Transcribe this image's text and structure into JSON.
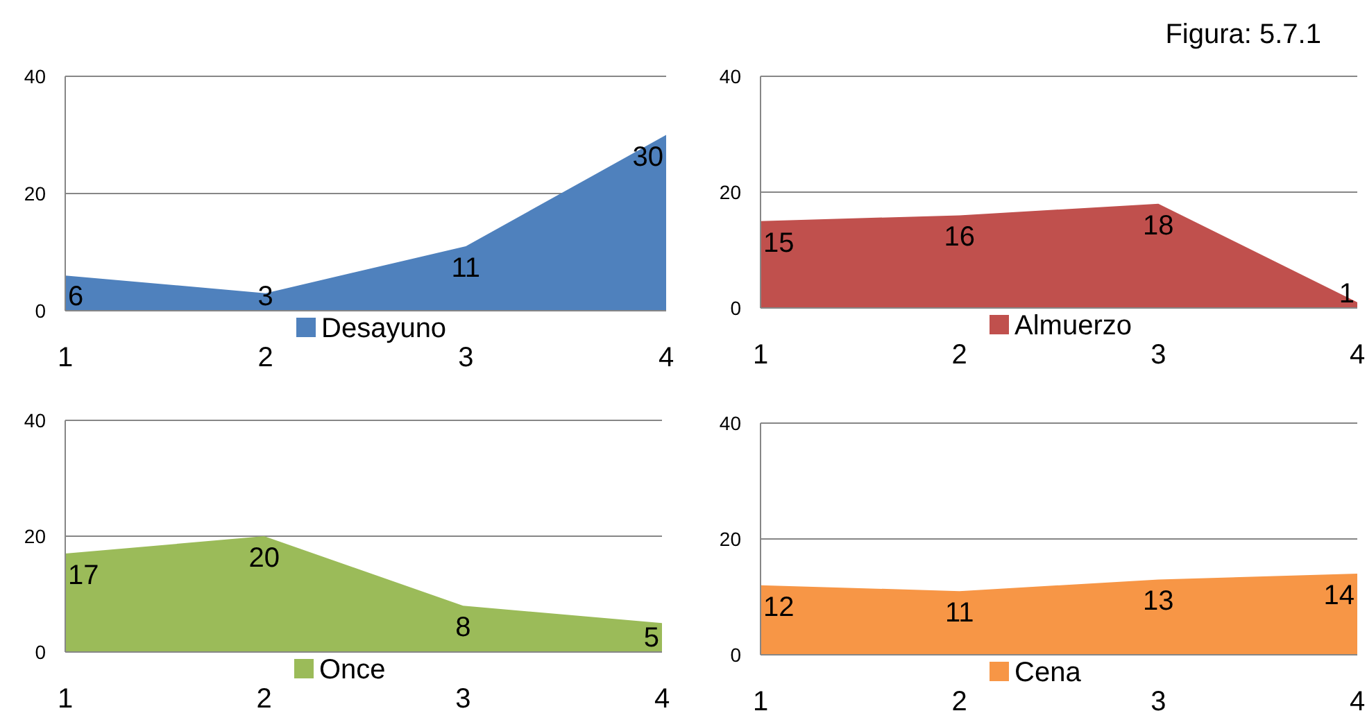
{
  "chart_data": [
    {
      "type": "area",
      "x": [
        1,
        2,
        3,
        4
      ],
      "xlim": [
        1,
        4
      ],
      "xticks": [
        1,
        2,
        3,
        4
      ],
      "ylim": [
        0,
        40
      ],
      "yticks": [
        0,
        20,
        40
      ],
      "grid": "y",
      "legend": "bottom",
      "data_labels": true,
      "series": [
        {
          "name": "Desayuno",
          "color": "#4f81bd",
          "values": [
            6,
            3,
            11,
            30
          ]
        }
      ]
    },
    {
      "type": "area",
      "x": [
        1,
        2,
        3,
        4
      ],
      "xlim": [
        1,
        4
      ],
      "xticks": [
        1,
        2,
        3,
        4
      ],
      "ylim": [
        0,
        40
      ],
      "yticks": [
        0,
        20,
        40
      ],
      "grid": "y",
      "legend": "bottom",
      "data_labels": true,
      "annotations": [
        "Figura: 5.7.1"
      ],
      "series": [
        {
          "name": "Almuerzo",
          "color": "#c0504d",
          "values": [
            15,
            16,
            18,
            1
          ]
        }
      ]
    },
    {
      "type": "area",
      "x": [
        1,
        2,
        3,
        4
      ],
      "xlim": [
        1,
        4
      ],
      "xticks": [
        1,
        2,
        3,
        4
      ],
      "ylim": [
        0,
        40
      ],
      "yticks": [
        0,
        20,
        40
      ],
      "grid": "y",
      "legend": "bottom",
      "data_labels": true,
      "series": [
        {
          "name": "Once",
          "color": "#9bbb59",
          "values": [
            17,
            20,
            8,
            5
          ]
        }
      ]
    },
    {
      "type": "area",
      "x": [
        1,
        2,
        3,
        4
      ],
      "xlim": [
        1,
        4
      ],
      "xticks": [
        1,
        2,
        3,
        4
      ],
      "ylim": [
        0,
        40
      ],
      "yticks": [
        0,
        20,
        40
      ],
      "grid": "y",
      "legend": "bottom",
      "data_labels": true,
      "series": [
        {
          "name": "Cena",
          "color": "#f79646",
          "values": [
            12,
            11,
            13,
            14
          ]
        }
      ]
    }
  ]
}
